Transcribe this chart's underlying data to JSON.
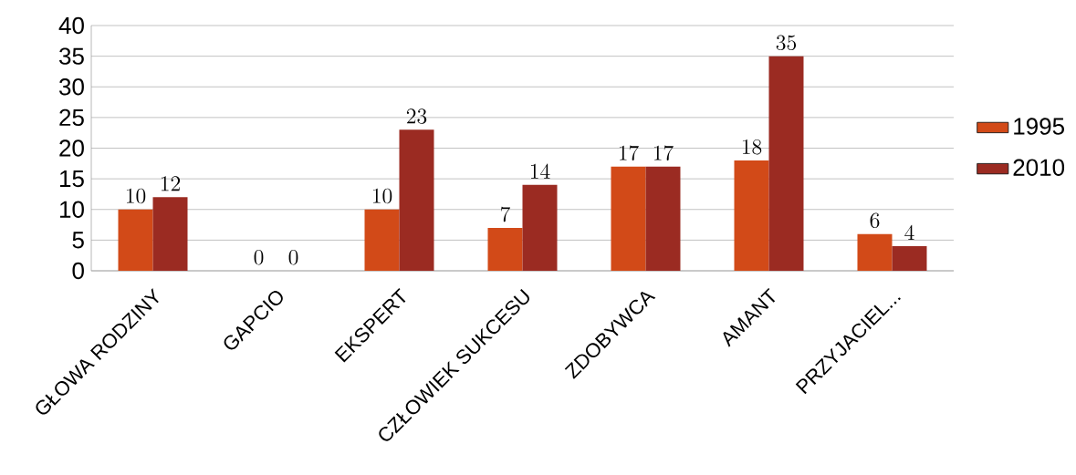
{
  "chart_data": {
    "type": "bar",
    "categories": [
      "GŁOWA RODZINY",
      "GAPCIO",
      "EKSPERT",
      "CZŁOWIEK SUKCESU",
      "ZDOBYWCA",
      "AMANT",
      "PRZYJACIEL..."
    ],
    "series": [
      {
        "name": "1995",
        "color": "#d24a18",
        "values": [
          10,
          0,
          10,
          7,
          17,
          18,
          6
        ]
      },
      {
        "name": "2010",
        "color": "#9b2b22",
        "values": [
          12,
          0,
          23,
          14,
          17,
          35,
          4
        ]
      }
    ],
    "ylim": [
      0,
      40
    ],
    "yticks": [
      0,
      5,
      10,
      15,
      20,
      25,
      30,
      35,
      40
    ],
    "grid": "y",
    "legend": "right",
    "data_labels": true
  }
}
